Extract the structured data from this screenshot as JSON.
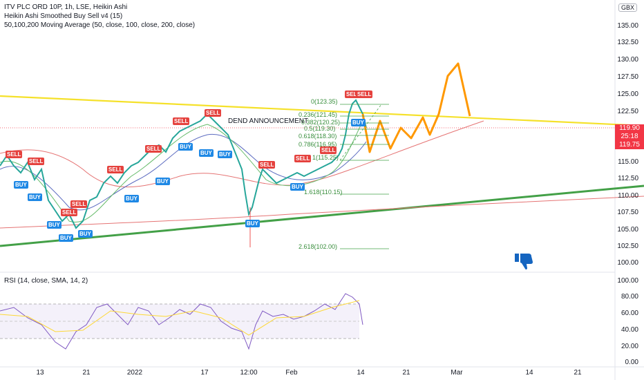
{
  "symbol_title": "ITV PLC ORD 10P, 1h, LSE, Heikin Ashi",
  "indicator1": "Heikin Ashi Smoothed Buy Sell v4  (15)",
  "indicator2": "50,100,200 Moving Average (50, close, 100, close, 200, close)",
  "currency": "GBX",
  "price_axis": [
    "135.00",
    "132.50",
    "130.00",
    "127.50",
    "125.00",
    "122.50",
    "120.00",
    "117.50",
    "115.00",
    "112.50",
    "110.00",
    "107.50",
    "105.00",
    "102.50",
    "100.00"
  ],
  "current_price": "119.90",
  "countdown": "25:18",
  "low_price": "119.75",
  "rsi_title": "RSI (14, close, SMA, 14, 2)",
  "rsi_axis": [
    "100.00",
    "80.00",
    "60.00",
    "40.00",
    "20.00",
    "0.00"
  ],
  "time_axis": [
    "13",
    "21",
    "2022",
    "17",
    "12:00",
    "Feb",
    "14",
    "21",
    "Mar",
    "14",
    "21"
  ],
  "annotation": "DEND ANNOUNCEMENT",
  "fib_levels": [
    "0(123.35)",
    "0.236(121.45)",
    "0.382(120.25)",
    "0.5(119.30)",
    "0.618(118.30)",
    "0.786(116.95)",
    "1(115.25)",
    "1.618(110.15)",
    "2.618(102.00)"
  ],
  "signals": {
    "sell": "SELL",
    "buy": "BUY"
  },
  "colors": {
    "sell": "#e5423e",
    "buy": "#1e88e5",
    "projection": "#ff9800",
    "trend_green": "#43a047",
    "trend_yellow": "#f5e12a",
    "price_red": "#f23645"
  }
}
